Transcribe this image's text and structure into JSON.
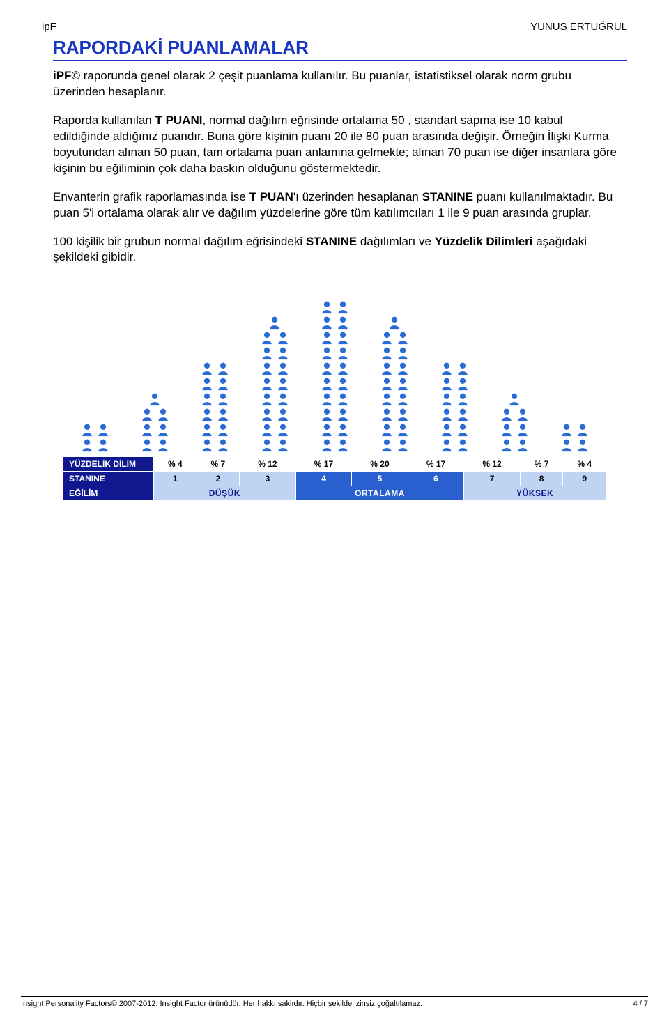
{
  "header": {
    "left": "ipF",
    "right": "YUNUS ERTUĞRUL"
  },
  "section_title": "RAPORDAKİ PUANLAMALAR",
  "title_color": "#1736c4",
  "paragraphs": {
    "p1_a": "iPF",
    "p1_b": "©",
    "p1_c": " raporunda genel olarak 2 çeşit puanlama kullanılır. Bu puanlar, istatistiksel olarak norm grubu üzerinden hesaplanır.",
    "p2_a": "Raporda kullanılan ",
    "p2_b": "T PUANI",
    "p2_c": ", normal dağılım eğrisinde  ortalama 50 , standart sapma ise 10 kabul edildiğinde aldığınız puandır. Buna göre kişinin puanı 20 ile 80 puan arasında değişir. Örneğin  İlişki Kurma boyutundan alınan 50 puan, tam ortalama puan anlamına gelmekte; alınan 70 puan ise diğer insanlara göre kişinin bu eğiliminin çok daha baskın olduğunu göstermektedir.",
    "p3_a": "Envanterin grafik raporlamasında ise ",
    "p3_b": "T PUAN",
    "p3_c": "'ı üzerinden hesaplanan ",
    "p3_d": "STANINE",
    "p3_e": " puanı kullanılmaktadır. Bu puan 5'i ortalama olarak alır ve  dağılım yüzdelerine göre tüm katılımcıları 1 ile 9 puan arasında gruplar.",
    "p4_a": "100  kişilik bir grubun normal dağılım eğrisindeki ",
    "p4_b": "STANINE",
    "p4_c": " dağılımları ve ",
    "p4_d": "Yüzdelik Dilimleri",
    "p4_e": " aşağıdaki  şekildeki gibidir."
  },
  "chart": {
    "icon_color": "#2a6bd4",
    "columns": [
      {
        "count": 4,
        "layout": [
          2,
          2
        ]
      },
      {
        "count": 7,
        "layout": [
          2,
          2,
          2,
          1
        ]
      },
      {
        "count": 12,
        "layout": [
          2,
          2,
          2,
          2,
          2,
          2
        ]
      },
      {
        "count": 17,
        "layout": [
          2,
          2,
          2,
          2,
          2,
          2,
          2,
          2,
          1
        ]
      },
      {
        "count": 20,
        "layout": [
          2,
          2,
          2,
          2,
          2,
          2,
          2,
          2,
          2,
          2
        ]
      },
      {
        "count": 17,
        "layout": [
          2,
          2,
          2,
          2,
          2,
          2,
          2,
          2,
          1
        ]
      },
      {
        "count": 12,
        "layout": [
          2,
          2,
          2,
          2,
          2,
          2
        ]
      },
      {
        "count": 7,
        "layout": [
          2,
          2,
          2,
          1
        ]
      },
      {
        "count": 4,
        "layout": [
          2,
          2
        ]
      }
    ]
  },
  "table": {
    "row_label_bg": "#10188f",
    "percent_label": "YÜZDELİK DİLİM",
    "percents": [
      "% 4",
      "% 7",
      "% 12",
      "% 17",
      "% 20",
      "% 17",
      "% 12",
      "% 7",
      "% 4"
    ],
    "stanine_label": "STANINE",
    "stanine_values": [
      "1",
      "2",
      "3",
      "4",
      "5",
      "6",
      "7",
      "8",
      "9"
    ],
    "stanine_colors": {
      "low": "#bfd3f3",
      "mid": "#2a5fd0",
      "high": "#bfd3f3"
    },
    "tendency_label": "EĞİLİM",
    "tendency_groups": [
      {
        "label": "DÜŞÜK",
        "span": 3,
        "bg": "#bfd3f3",
        "fg": "#10188f"
      },
      {
        "label": "ORTALAMA",
        "span": 3,
        "bg": "#2a5fd0",
        "fg": "#ffffff"
      },
      {
        "label": "YÜKSEK",
        "span": 3,
        "bg": "#bfd3f3",
        "fg": "#10188f"
      }
    ]
  },
  "footer": {
    "left": "Insight Personality Factors© 2007-2012. Insight Factor ürünüdür. Her hakkı saklıdır. Hiçbir şekilde izinsiz çoğaltılamaz.",
    "right": "4 / 7"
  }
}
